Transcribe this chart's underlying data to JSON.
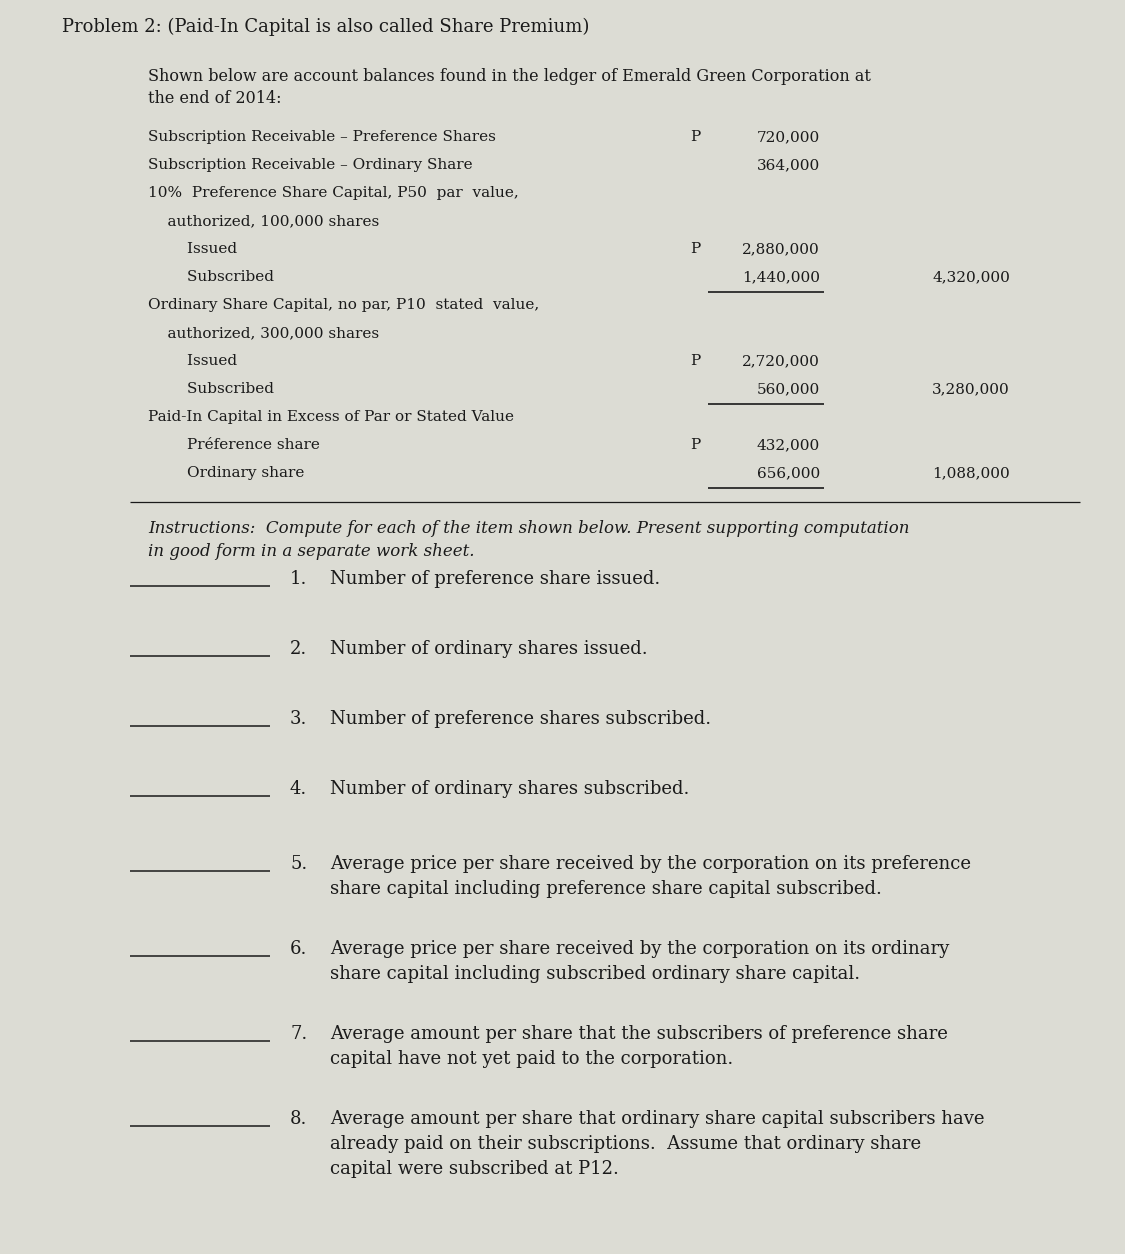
{
  "title": "Problem 2: (Paid-In Capital is also called Share Premium)",
  "bg_color": "#dcdcd4",
  "text_color": "#1a1a1a",
  "intro_line1": "Shown below are account balances found in the ledger of Emerald Green Corporation at",
  "intro_line2": "the end of 2014:",
  "ledger_items": [
    {
      "label": "Subscription Receivable – Preference Shares",
      "ind": 0,
      "p": "P",
      "v2": "720,000",
      "v3": "",
      "ul": false
    },
    {
      "label": "Subscription Receivable – Ordinary Share",
      "ind": 0,
      "p": "",
      "v2": "364,000",
      "v3": "",
      "ul": false
    },
    {
      "label": "10%  Preference Share Capital, P50  par  value,",
      "ind": 0,
      "p": "",
      "v2": "",
      "v3": "",
      "ul": false
    },
    {
      "label": "    authorized, 100,000 shares",
      "ind": 0,
      "p": "",
      "v2": "",
      "v3": "",
      "ul": false
    },
    {
      "label": "        Issued",
      "ind": 0,
      "p": "P",
      "v2": "2,880,000",
      "v3": "",
      "ul": false
    },
    {
      "label": "        Subscribed",
      "ind": 0,
      "p": "",
      "v2": "1,440,000",
      "v3": "4,320,000",
      "ul": true
    },
    {
      "label": "Ordinary Share Capital, no par, P10  stated  value,",
      "ind": 0,
      "p": "",
      "v2": "",
      "v3": "",
      "ul": false
    },
    {
      "label": "    authorized, 300,000 shares",
      "ind": 0,
      "p": "",
      "v2": "",
      "v3": "",
      "ul": false
    },
    {
      "label": "        Issued",
      "ind": 0,
      "p": "P",
      "v2": "2,720,000",
      "v3": "",
      "ul": false
    },
    {
      "label": "        Subscribed",
      "ind": 0,
      "p": "",
      "v2": "560,000",
      "v3": "3,280,000",
      "ul": true
    },
    {
      "label": "Paid-In Capital in Excess of Par or Stated Value",
      "ind": 0,
      "p": "",
      "v2": "",
      "v3": "",
      "ul": false
    },
    {
      "label": "        Préference share",
      "ind": 0,
      "p": "P",
      "v2": "432,000",
      "v3": "",
      "ul": false
    },
    {
      "label": "        Ordinary share",
      "ind": 0,
      "p": "",
      "v2": "656,000",
      "v3": "1,088,000",
      "ul": true
    }
  ],
  "instructions": "Instructions:  Compute for each of the item shown below. Present supporting computation\nin good form in a separate work sheet.",
  "questions": [
    {
      "num": "1.",
      "text": "Number of preference share issued.",
      "lines": 1
    },
    {
      "num": "2.",
      "text": "Number of ordinary shares issued.",
      "lines": 1
    },
    {
      "num": "3.",
      "text": "Number of preference shares subscribed.",
      "lines": 1
    },
    {
      "num": "4.",
      "text": "Number of ordinary shares subscribed.",
      "lines": 1
    },
    {
      "num": "5.",
      "text": "Average price per share received by the corporation on its preference\nshare capital including preference share capital subscribed.",
      "lines": 2
    },
    {
      "num": "6.",
      "text": "Average price per share received by the corporation on its ordinary\nshare capital including subscribed ordinary share capital.",
      "lines": 2
    },
    {
      "num": "7.",
      "text": "Average amount per share that the subscribers of preference share\ncapital have not yet paid to the corporation.",
      "lines": 2
    },
    {
      "num": "8.",
      "text": "Average amount per share that ordinary share capital subscribers have\nalready paid on their subscriptions.  Assume that ordinary share\ncapital were subscribed at P12.",
      "lines": 3
    }
  ],
  "font_family": "DejaVu Serif",
  "fs_title": 13,
  "fs_intro": 11.5,
  "fs_ledger": 11,
  "fs_instructions": 12,
  "fs_questions": 13
}
